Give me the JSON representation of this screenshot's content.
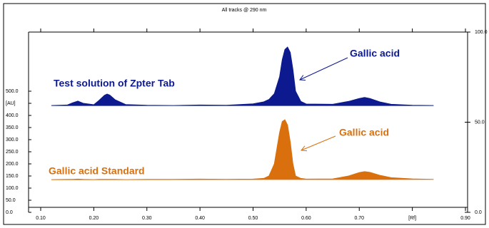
{
  "chart_data": {
    "type": "area",
    "title": "All tracks @ 290 nm",
    "x": [
      0.12,
      0.15,
      0.16,
      0.17,
      0.18,
      0.2,
      0.21,
      0.22,
      0.225,
      0.23,
      0.24,
      0.26,
      0.3,
      0.35,
      0.4,
      0.45,
      0.5,
      0.52,
      0.53,
      0.54,
      0.55,
      0.555,
      0.56,
      0.565,
      0.57,
      0.575,
      0.58,
      0.59,
      0.6,
      0.65,
      0.68,
      0.7,
      0.71,
      0.72,
      0.74,
      0.76,
      0.8,
      0.84
    ],
    "series": [
      {
        "name": "Test solution of Zpter Tab",
        "color": "#0d1a8f",
        "values": [
          441,
          443,
          452,
          459,
          450,
          444,
          462,
          483,
          488,
          484,
          465,
          445,
          442,
          441,
          443,
          442,
          448,
          456,
          466,
          490,
          560,
          630,
          672,
          682,
          660,
          590,
          500,
          458,
          447,
          446,
          458,
          470,
          474,
          470,
          455,
          446,
          442,
          441
        ]
      },
      {
        "name": "Gallic acid Standard",
        "color": "#d9700d",
        "values": [
          135,
          136,
          136,
          137,
          136,
          135,
          136,
          136,
          136,
          136,
          136,
          135,
          136,
          136,
          137,
          136,
          137,
          140,
          150,
          200,
          330,
          375,
          382,
          360,
          290,
          200,
          150,
          140,
          137,
          138,
          150,
          164,
          168,
          165,
          152,
          143,
          138,
          136
        ]
      }
    ],
    "annotations": [
      "Gallic acid",
      "Gallic acid"
    ],
    "xlim": [
      0.1,
      0.9
    ],
    "xticks": [
      {
        "value": 0.1,
        "label": "0.10"
      },
      {
        "value": 0.2,
        "label": "0.20"
      },
      {
        "value": 0.3,
        "label": "0.30"
      },
      {
        "value": 0.4,
        "label": "0.40"
      },
      {
        "value": 0.5,
        "label": "0.50"
      },
      {
        "value": 0.6,
        "label": "0.60"
      },
      {
        "value": 0.7,
        "label": "0.70"
      },
      {
        "value": 0.8,
        "label": "[Rf]"
      },
      {
        "value": 0.9,
        "label": "0.90"
      }
    ],
    "ylim": [
      0,
      744
    ],
    "yticks": [
      {
        "value": 0,
        "label": "0.0"
      },
      {
        "value": 50,
        "label": "50.0"
      },
      {
        "value": 100,
        "label": "100.0"
      },
      {
        "value": 150,
        "label": "150.0"
      },
      {
        "value": 200,
        "label": "200.0"
      },
      {
        "value": 250,
        "label": "250.0"
      },
      {
        "value": 300,
        "label": "300.0"
      },
      {
        "value": 350,
        "label": "350.0"
      },
      {
        "value": 400,
        "label": "400.0"
      },
      {
        "value": 450,
        "label": "[AU]"
      },
      {
        "value": 500,
        "label": "500.0"
      }
    ],
    "y2lim": [
      0,
      100
    ],
    "y2ticks": [
      {
        "value": 0,
        "label": "0.0"
      },
      {
        "value": 50,
        "label": "50.0"
      },
      {
        "value": 100,
        "label": "100.0"
      }
    ]
  }
}
